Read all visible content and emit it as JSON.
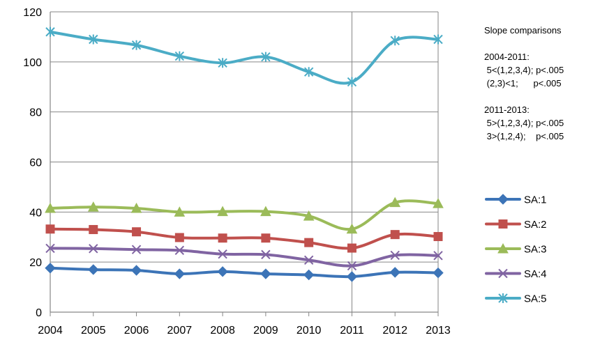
{
  "chart_data": {
    "type": "line",
    "x": [
      "2004",
      "2005",
      "2006",
      "2007",
      "2008",
      "2009",
      "2010",
      "2011",
      "2012",
      "2013"
    ],
    "ylim": [
      0,
      120
    ],
    "yticks": [
      "0",
      "20",
      "40",
      "60",
      "80",
      "100",
      "120"
    ],
    "grid": true,
    "legend_position": "right",
    "vertical_marker_at": "2011",
    "series": [
      {
        "name": "SA:1",
        "color": "#3C74B7",
        "marker": "diamond",
        "values": [
          17.6,
          17.0,
          16.7,
          15.3,
          16.2,
          15.3,
          14.9,
          14.2,
          15.9,
          15.7
        ]
      },
      {
        "name": "SA:2",
        "color": "#C0504D",
        "marker": "square",
        "values": [
          33.2,
          33.0,
          32.1,
          29.8,
          29.6,
          29.6,
          27.8,
          25.6,
          31.0,
          30.2
        ]
      },
      {
        "name": "SA:3",
        "color": "#9BBB59",
        "marker": "triangle",
        "values": [
          41.5,
          42.0,
          41.5,
          40.0,
          40.2,
          40.2,
          38.4,
          33.2,
          43.8,
          43.4
        ]
      },
      {
        "name": "SA:4",
        "color": "#8064A2",
        "marker": "x",
        "values": [
          25.5,
          25.4,
          25.0,
          24.7,
          23.2,
          23.0,
          20.8,
          18.5,
          22.7,
          22.6
        ]
      },
      {
        "name": "SA:5",
        "color": "#4BACC6",
        "marker": "asterisk",
        "values": [
          112.0,
          109.0,
          106.7,
          102.3,
          99.6,
          102.0,
          96.0,
          92.0,
          108.5,
          109.0
        ]
      }
    ],
    "annotations": [
      "Slope comparisons",
      "",
      "2004-2011:",
      " 5<(1,2,3,4); p<.005",
      " (2,3)<1;      p<.005",
      "",
      "2011-2013:",
      " 5>(1,2,3,4); p<.005",
      " 3>(1,2,4);    p<.005"
    ]
  }
}
